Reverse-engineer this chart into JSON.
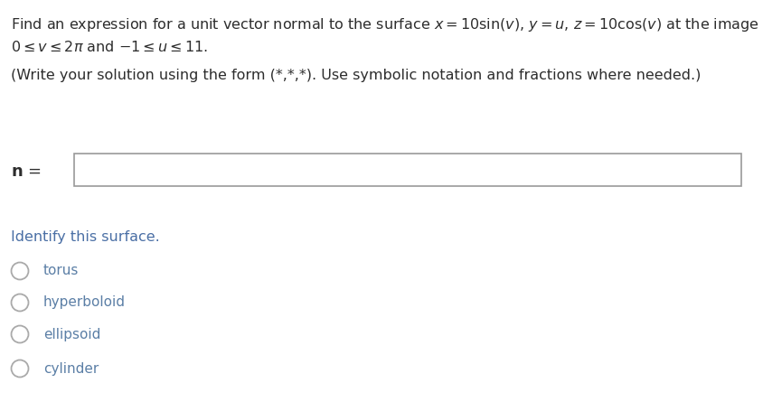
{
  "bg_color": "#ffffff",
  "dark_color": "#2d2d2d",
  "blue_color": "#4a6fa5",
  "radio_color": "#5b7fa6",
  "line1": "Find an expression for a unit vector normal to the surface $x = 10\\sin(v)$, $y = u$, $z = 10\\cos(v)$ at the image of a point $(u, v)$ for",
  "line2": "$0 \\leq v \\leq 2\\pi$ and $-1 \\leq u \\leq 11$.",
  "line3": "(Write your solution using the form (*,*,*). Use symbolic notation and fractions where needed.)",
  "n_label": "n =",
  "identify_label": "Identify this surface.",
  "radio_options": [
    "torus",
    "hyperboloid",
    "ellipsoid",
    "cylinder"
  ],
  "fontsize_main": 11.5,
  "fontsize_radio": 11.0
}
